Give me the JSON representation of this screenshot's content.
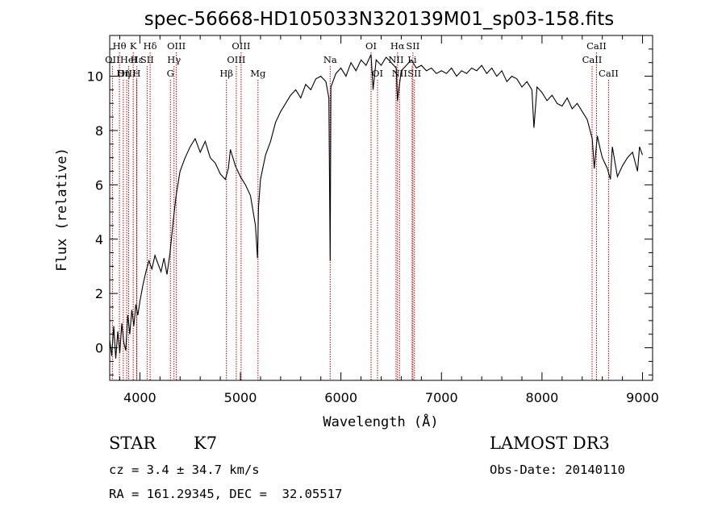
{
  "chart_data": {
    "type": "line",
    "title": "spec-56668-HD105033N320139M01_sp03-158.fits",
    "xlabel": "Wavelength (Å)",
    "ylabel": "Flux (relative)",
    "xlim": [
      3700,
      9100
    ],
    "ylim": [
      -1.2,
      11.5
    ],
    "x_ticks": [
      4000,
      5000,
      6000,
      7000,
      8000,
      9000
    ],
    "y_ticks": [
      0,
      2,
      4,
      6,
      8,
      10
    ],
    "grid": false,
    "series": [
      {
        "x": [
          3700,
          3720,
          3740,
          3760,
          3780,
          3800,
          3820,
          3840,
          3860,
          3880,
          3900,
          3920,
          3940,
          3960,
          3980,
          4000,
          4030,
          4060,
          4090,
          4120,
          4150,
          4180,
          4210,
          4240,
          4270,
          4300,
          4330,
          4360,
          4400,
          4450,
          4500,
          4550,
          4600,
          4650,
          4700,
          4750,
          4800,
          4850,
          4880,
          4900,
          4950,
          5000,
          5050,
          5100,
          5150,
          5170,
          5180,
          5200,
          5250,
          5300,
          5350,
          5400,
          5450,
          5500,
          5550,
          5600,
          5650,
          5700,
          5750,
          5800,
          5850,
          5880,
          5893,
          5900,
          5950,
          6000,
          6050,
          6100,
          6150,
          6200,
          6250,
          6300,
          6320,
          6350,
          6400,
          6450,
          6500,
          6550,
          6562,
          6600,
          6650,
          6700,
          6750,
          6800,
          6850,
          6900,
          6950,
          7000,
          7050,
          7100,
          7150,
          7200,
          7250,
          7300,
          7350,
          7400,
          7450,
          7500,
          7550,
          7600,
          7650,
          7700,
          7750,
          7800,
          7850,
          7900,
          7920,
          7950,
          8000,
          8050,
          8100,
          8150,
          8200,
          8250,
          8300,
          8350,
          8400,
          8450,
          8500,
          8520,
          8550,
          8580,
          8600,
          8650,
          8680,
          8700,
          8750,
          8800,
          8850,
          8900,
          8950,
          8970,
          9000
        ],
        "y": [
          0.3,
          -0.3,
          0.8,
          -0.4,
          0.6,
          -0.2,
          0.9,
          0.2,
          -0.1,
          1.2,
          0.5,
          1.4,
          0.8,
          1.6,
          1.2,
          1.7,
          2.3,
          2.8,
          3.2,
          2.9,
          3.4,
          3.1,
          2.8,
          3.3,
          2.7,
          3.5,
          4.6,
          5.6,
          6.5,
          7.0,
          7.4,
          7.7,
          7.2,
          7.6,
          7.0,
          6.8,
          6.4,
          6.2,
          6.6,
          7.3,
          6.7,
          6.3,
          6.0,
          5.6,
          4.5,
          3.3,
          5.2,
          6.2,
          7.1,
          7.6,
          8.3,
          8.7,
          9.0,
          9.3,
          9.5,
          9.2,
          9.7,
          9.5,
          9.9,
          10.0,
          9.8,
          9.2,
          3.2,
          9.6,
          10.1,
          10.3,
          10.0,
          10.5,
          10.2,
          10.6,
          10.4,
          10.8,
          9.5,
          10.6,
          10.4,
          10.7,
          10.5,
          10.3,
          9.1,
          10.2,
          10.4,
          10.6,
          10.3,
          10.4,
          10.2,
          10.3,
          10.1,
          10.2,
          10.1,
          10.3,
          10.0,
          10.2,
          10.1,
          10.3,
          10.2,
          10.4,
          10.1,
          10.3,
          10.0,
          10.2,
          9.8,
          10.0,
          9.9,
          9.6,
          9.8,
          9.5,
          8.1,
          9.6,
          9.4,
          9.1,
          9.3,
          9.0,
          8.9,
          9.2,
          8.8,
          9.0,
          8.7,
          8.4,
          7.7,
          6.6,
          7.8,
          7.3,
          7.0,
          6.6,
          6.2,
          7.4,
          6.3,
          6.7,
          7.0,
          7.2,
          6.5,
          7.4,
          7.1
        ]
      }
    ],
    "spectral_lines": [
      {
        "label": "Hθ",
        "wavelength": 3797,
        "row": 1
      },
      {
        "label": "OII",
        "wavelength": 3727,
        "row": 2
      },
      {
        "label": "OIII",
        "wavelength": 3869,
        "row": 3
      },
      {
        "label": "HeI",
        "wavelength": 3889,
        "row": 2
      },
      {
        "label": "Hη",
        "wavelength": 3835,
        "row": 3
      },
      {
        "label": "H",
        "wavelength": 3968,
        "row": 3
      },
      {
        "label": "K",
        "wavelength": 3934,
        "row": 1
      },
      {
        "label": "Hε",
        "wavelength": 3970,
        "row": 2
      },
      {
        "label": "Hδ",
        "wavelength": 4102,
        "row": 1
      },
      {
        "label": "SII",
        "wavelength": 4072,
        "row": 2
      },
      {
        "label": "OIII",
        "wavelength": 4363,
        "row": 1
      },
      {
        "label": "Hγ",
        "wavelength": 4340,
        "row": 2
      },
      {
        "label": "G",
        "wavelength": 4304,
        "row": 3
      },
      {
        "label": "Hβ",
        "wavelength": 4861,
        "row": 3
      },
      {
        "label": "OIII",
        "wavelength": 5007,
        "row": 1
      },
      {
        "label": "OIII",
        "wavelength": 4959,
        "row": 2
      },
      {
        "label": "Mg",
        "wavelength": 5175,
        "row": 3
      },
      {
        "label": "Na",
        "wavelength": 5893,
        "row": 2
      },
      {
        "label": "OI",
        "wavelength": 6300,
        "row": 1
      },
      {
        "label": "OI",
        "wavelength": 6364,
        "row": 3
      },
      {
        "label": "Hα",
        "wavelength": 6563,
        "row": 1
      },
      {
        "label": "NII",
        "wavelength": 6548,
        "row": 2
      },
      {
        "label": "NII",
        "wavelength": 6583,
        "row": 3
      },
      {
        "label": "SII",
        "wavelength": 6716,
        "row": 1
      },
      {
        "label": "Li",
        "wavelength": 6708,
        "row": 2
      },
      {
        "label": "SII",
        "wavelength": 6731,
        "row": 3
      },
      {
        "label": "CaII",
        "wavelength": 8542,
        "row": 1
      },
      {
        "label": "CaII",
        "wavelength": 8498,
        "row": 2
      },
      {
        "label": "CaII",
        "wavelength": 8662,
        "row": 3
      }
    ],
    "line_color": "#000000",
    "marker_color": "#c00000"
  },
  "info": {
    "class": "STAR",
    "subclass": "K7",
    "survey": "LAMOST DR3",
    "cz": "cz = 3.4 ± 34.7 km/s",
    "obs_date": "Obs-Date: 20140110",
    "radec": "RA = 161.29345, DEC =  32.05517"
  }
}
